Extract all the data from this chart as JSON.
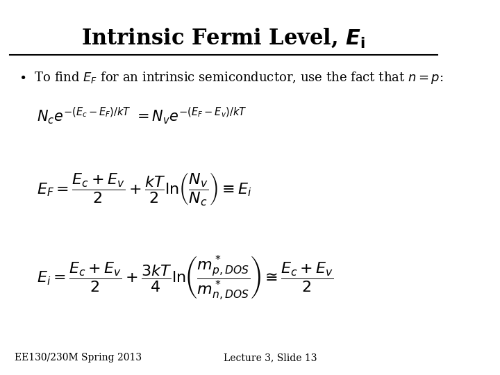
{
  "title": "Intrinsic Fermi Level, $\\boldsymbol{E}_{\\mathbf{i}}$",
  "bullet_text": "To find $E_F$ for an intrinsic semiconductor, use the fact that $n = p$:",
  "eq1": "$N_c e^{-(E_c-E_F)/kT} \\ = N_v e^{-(E_F-E_v)/kT}$",
  "eq2": "$E_F = \\dfrac{E_c + E_v}{2} + \\dfrac{kT}{2} \\ln\\!\\left(\\dfrac{N_v}{N_c}\\right) \\equiv E_i$",
  "eq3": "$E_i = \\dfrac{E_c + E_v}{2} + \\dfrac{3kT}{4} \\ln\\!\\left(\\dfrac{m^*_{p,DOS}}{m^*_{n,DOS}}\\right) \\cong \\dfrac{E_c + E_v}{2}$",
  "footer_left": "EE130/230M Spring 2013",
  "footer_right": "Lecture 3, Slide 13",
  "bg_color": "#ffffff",
  "text_color": "#000000",
  "title_fontsize": 22,
  "body_fontsize": 13,
  "eq_fontsize": 16,
  "footer_fontsize": 10
}
